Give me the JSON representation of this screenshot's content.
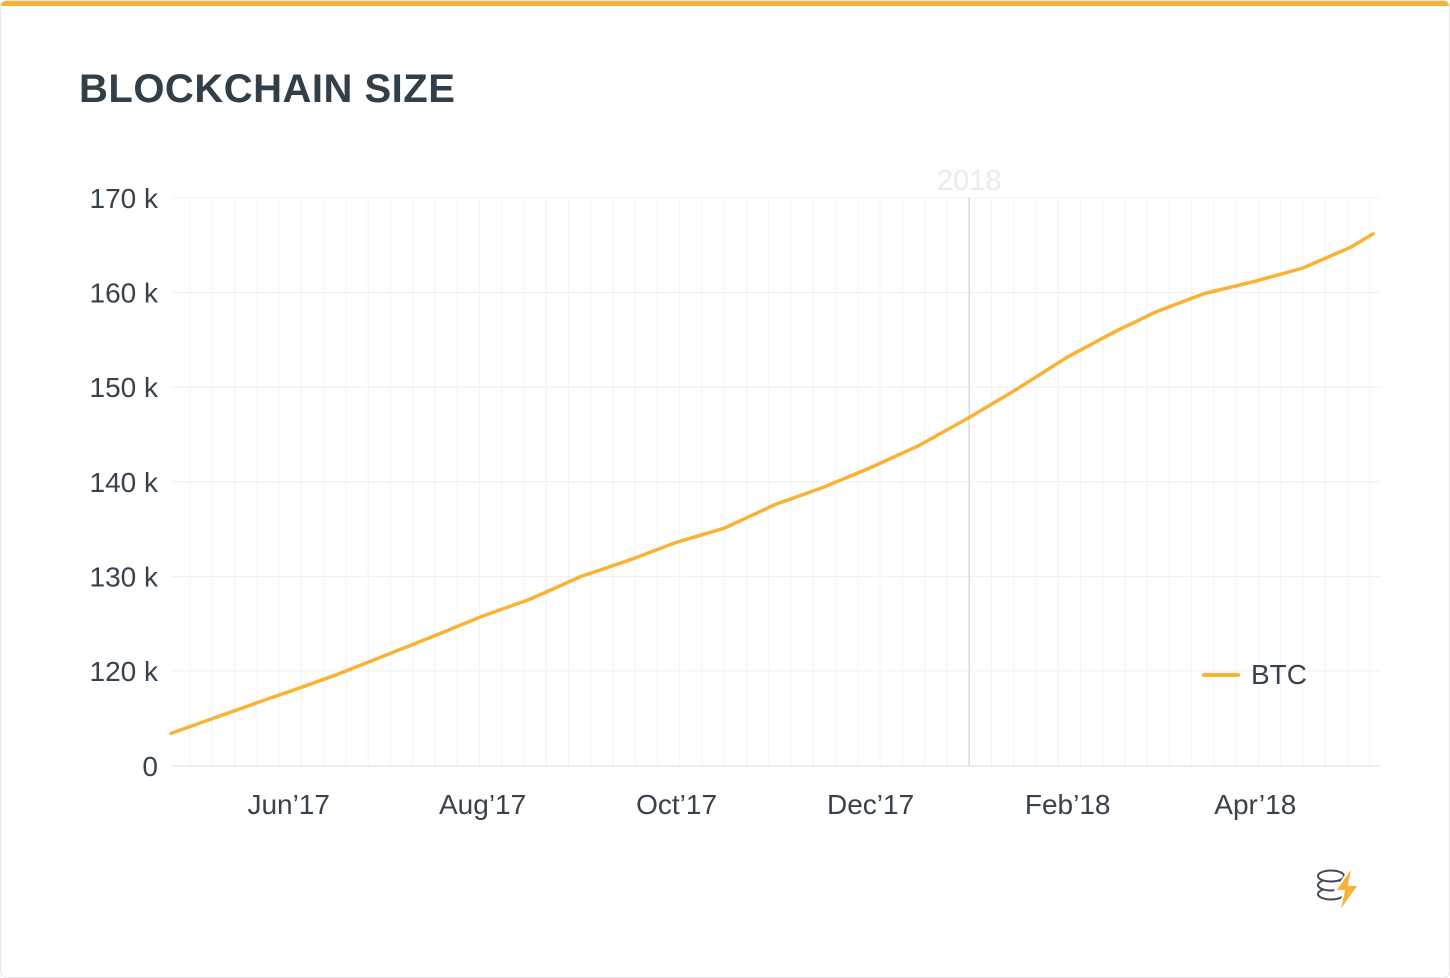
{
  "page": {
    "title": "BLOCKCHAIN SIZE"
  },
  "theme": {
    "accent": "#F9B233",
    "line_color": "#F9B233",
    "text_dark": "#37424E",
    "grid_light": "#F1F3F6",
    "grid_horizontal": "#EEF1F4",
    "baseline": "#D9DEE3",
    "divider": "#D6DBE1",
    "year_label_color": "#E8EBEF"
  },
  "legend": {
    "btc_label": "BTC"
  },
  "logo": {
    "name": "coin-stack-lightning-logo"
  },
  "chart_data": {
    "type": "line",
    "title": "BLOCKCHAIN SIZE",
    "xlabel": "",
    "ylabel": "",
    "unit": "k",
    "ylim_display": [
      120,
      170
    ],
    "zero_break": true,
    "grid": {
      "horizontal": true,
      "vertical_interval_days": 7
    },
    "legend_position": "inside-right",
    "y_ticks": [
      {
        "label": "170 k",
        "value": 170
      },
      {
        "label": "160 k",
        "value": 160
      },
      {
        "label": "150 k",
        "value": 150
      },
      {
        "label": "140 k",
        "value": 140
      },
      {
        "label": "130 k",
        "value": 130
      },
      {
        "label": "120 k",
        "value": 120
      },
      {
        "label": "0",
        "value": null
      }
    ],
    "x_ticks": [
      {
        "label": "Jun’17",
        "day": 37
      },
      {
        "label": "Aug’17",
        "day": 98
      },
      {
        "label": "Oct’17",
        "day": 159
      },
      {
        "label": "Dec’17",
        "day": 220
      },
      {
        "label": "Feb’18",
        "day": 282
      },
      {
        "label": "Apr’18",
        "day": 341
      }
    ],
    "annotations": [
      {
        "label": "2018",
        "day": 251
      }
    ],
    "series": [
      {
        "name": "BTC",
        "color": "#F9B233",
        "points": [
          [
            0,
            113.4
          ],
          [
            15,
            115.2
          ],
          [
            30,
            117.0
          ],
          [
            37,
            117.8
          ],
          [
            52,
            119.6
          ],
          [
            67,
            121.6
          ],
          [
            82,
            123.6
          ],
          [
            98,
            125.8
          ],
          [
            113,
            127.6
          ],
          [
            129,
            130.0
          ],
          [
            144,
            131.7
          ],
          [
            159,
            133.6
          ],
          [
            174,
            135.1
          ],
          [
            190,
            137.6
          ],
          [
            205,
            139.4
          ],
          [
            220,
            141.5
          ],
          [
            235,
            143.8
          ],
          [
            251,
            146.8
          ],
          [
            266,
            149.8
          ],
          [
            282,
            153.2
          ],
          [
            297,
            155.9
          ],
          [
            310,
            158.0
          ],
          [
            325,
            159.9
          ],
          [
            341,
            161.2
          ],
          [
            356,
            162.6
          ],
          [
            371,
            164.8
          ],
          [
            378,
            166.2
          ]
        ]
      }
    ]
  }
}
